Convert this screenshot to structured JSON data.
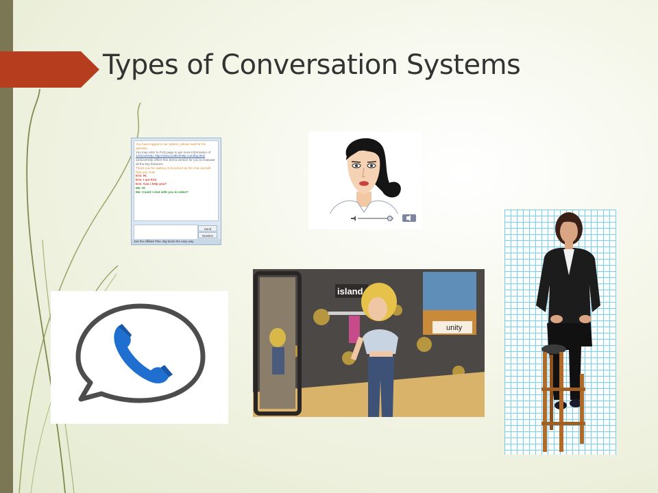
{
  "slide": {
    "title": "Types of Conversation Systems"
  },
  "colors": {
    "accent_arrow": "#b63e1f",
    "left_bar": "#7b7654",
    "title_text": "#333333",
    "background": "#eef1dc"
  },
  "images": {
    "chat_window": {
      "lines": [
        {
          "style": "orange",
          "text": "You have logged in our system, please wait for the operator."
        },
        {
          "style": "gray",
          "text": "You may refer to FAQ page to get more information of"
        },
        {
          "style": "link",
          "text": "123LiveHelp: http://www.123livehelp.com/faq.html"
        },
        {
          "style": "gray",
          "text": "123LiveHelp offers free demo version for you to evaluate all the key features!"
        },
        {
          "style": "orange",
          "text": "Thank you for waiting. Kris picked up the chat and will help you now!"
        },
        {
          "style": "red",
          "text": "kris: Hi."
        },
        {
          "style": "red",
          "text": "kris: I am Kris"
        },
        {
          "style": "red",
          "text": "kris: Can i help you?"
        },
        {
          "style": "green",
          "text": "Me: Hi"
        },
        {
          "style": "green",
          "text": "Me: Could I chat with you in video?"
        }
      ],
      "send_label": "Send",
      "newline_label": "Newline",
      "footer": "Join the Affiliate Plan. Big bucks the easy way."
    },
    "avatar_face": {
      "icon": "animated-avatar-face",
      "volume_level": 0.9,
      "player_icon": "speaker-icon"
    },
    "phone_bubble": {
      "icon": "phone-speech-bubble-icon",
      "bubble_color": "#4d4d4d",
      "phone_color": "#1e6fd0"
    },
    "virtual_world": {
      "sign_text": "island",
      "engine_logo": "unity"
    },
    "standing_agent": {
      "icon": "seated-3d-woman-on-stool"
    }
  }
}
